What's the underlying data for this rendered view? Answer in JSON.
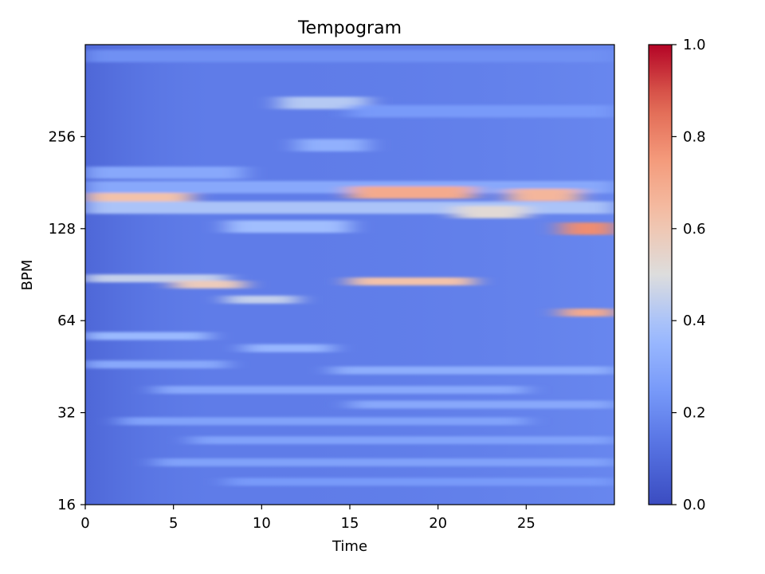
{
  "chart_data": {
    "type": "heatmap",
    "title": "Tempogram",
    "xlabel": "Time",
    "ylabel": "BPM",
    "xlim": [
      0,
      30
    ],
    "ylim": [
      16,
      512
    ],
    "y_scale": "log2",
    "x_ticks": [
      {
        "value": 0,
        "label": "0"
      },
      {
        "value": 5,
        "label": "5"
      },
      {
        "value": 10,
        "label": "10"
      },
      {
        "value": 15,
        "label": "15"
      },
      {
        "value": 20,
        "label": "20"
      },
      {
        "value": 25,
        "label": "25"
      }
    ],
    "y_ticks": [
      {
        "value": 16,
        "label": "16"
      },
      {
        "value": 32,
        "label": "32"
      },
      {
        "value": 64,
        "label": "64"
      },
      {
        "value": 128,
        "label": "128"
      },
      {
        "value": 256,
        "label": "256"
      }
    ],
    "colorbar": {
      "colormap": "coolwarm",
      "range": [
        0,
        1
      ],
      "ticks": [
        {
          "value": 0.0,
          "label": "0.0"
        },
        {
          "value": 0.2,
          "label": "0.2"
        },
        {
          "value": 0.4,
          "label": "0.4"
        },
        {
          "value": 0.6,
          "label": "0.6"
        },
        {
          "value": 0.8,
          "label": "0.8"
        },
        {
          "value": 1.0,
          "label": "1.0"
        }
      ]
    },
    "base_level": 0.16,
    "bands": [
      {
        "bpm": 470,
        "t0": 0,
        "t1": 30,
        "v": 0.22
      },
      {
        "bpm": 330,
        "t0": 11,
        "t1": 16,
        "v": 0.42
      },
      {
        "bpm": 310,
        "t0": 15,
        "t1": 30,
        "v": 0.25
      },
      {
        "bpm": 240,
        "t0": 12,
        "t1": 16,
        "v": 0.33
      },
      {
        "bpm": 195,
        "t0": 0,
        "t1": 9,
        "v": 0.3
      },
      {
        "bpm": 175,
        "t0": 0,
        "t1": 30,
        "v": 0.3
      },
      {
        "bpm": 160,
        "t0": 0,
        "t1": 6,
        "v": 0.62
      },
      {
        "bpm": 168,
        "t0": 15,
        "t1": 22,
        "v": 0.7
      },
      {
        "bpm": 165,
        "t0": 24,
        "t1": 28,
        "v": 0.66
      },
      {
        "bpm": 150,
        "t0": 0,
        "t1": 30,
        "v": 0.4
      },
      {
        "bpm": 145,
        "t0": 21,
        "t1": 25,
        "v": 0.52
      },
      {
        "bpm": 130,
        "t0": 8,
        "t1": 15,
        "v": 0.38
      },
      {
        "bpm": 128,
        "t0": 27,
        "t1": 30,
        "v": 0.78
      },
      {
        "bpm": 88,
        "t0": 0,
        "t1": 8,
        "v": 0.45
      },
      {
        "bpm": 86,
        "t0": 15,
        "t1": 22,
        "v": 0.62
      },
      {
        "bpm": 84,
        "t0": 5,
        "t1": 9,
        "v": 0.58
      },
      {
        "bpm": 75,
        "t0": 8,
        "t1": 12,
        "v": 0.45
      },
      {
        "bpm": 68,
        "t0": 27,
        "t1": 30,
        "v": 0.7
      },
      {
        "bpm": 57,
        "t0": 0,
        "t1": 7,
        "v": 0.36
      },
      {
        "bpm": 52,
        "t0": 9,
        "t1": 14,
        "v": 0.35
      },
      {
        "bpm": 46,
        "t0": 0,
        "t1": 8,
        "v": 0.3
      },
      {
        "bpm": 44,
        "t0": 14,
        "t1": 30,
        "v": 0.32
      },
      {
        "bpm": 38,
        "t0": 4,
        "t1": 25,
        "v": 0.3
      },
      {
        "bpm": 34,
        "t0": 15,
        "t1": 30,
        "v": 0.3
      },
      {
        "bpm": 30,
        "t0": 2,
        "t1": 25,
        "v": 0.28
      },
      {
        "bpm": 26,
        "t0": 6,
        "t1": 30,
        "v": 0.28
      },
      {
        "bpm": 22,
        "t0": 4,
        "t1": 30,
        "v": 0.28
      },
      {
        "bpm": 19,
        "t0": 8,
        "t1": 30,
        "v": 0.25
      }
    ]
  }
}
